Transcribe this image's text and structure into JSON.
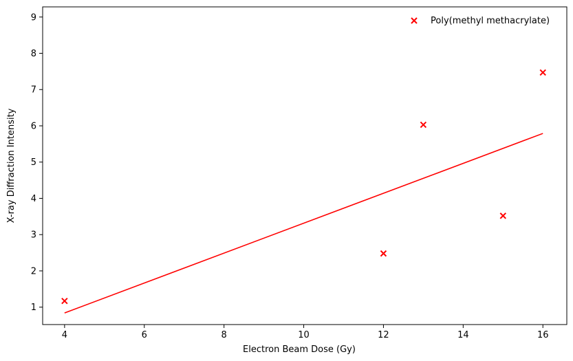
{
  "chart_data": {
    "type": "scatter",
    "title": "",
    "xlabel": "Electron Beam Dose (Gy)",
    "ylabel": "X-ray Diffraction Intensity",
    "xlim": [
      3.45,
      16.6
    ],
    "ylim": [
      0.52,
      9.28
    ],
    "xticks": [
      4,
      6,
      8,
      10,
      12,
      14,
      16
    ],
    "yticks": [
      1,
      2,
      3,
      4,
      5,
      6,
      7,
      8,
      9
    ],
    "grid": false,
    "legend_position": "upper right",
    "series": [
      {
        "name": "Poly(methyl methacrylate)",
        "kind": "scatter",
        "marker": "x",
        "color": "#ff0000",
        "x": [
          4,
          12,
          13,
          15,
          16
        ],
        "y": [
          1.17,
          2.48,
          6.03,
          3.52,
          7.47
        ]
      },
      {
        "kind": "line",
        "color": "#ff0000",
        "x": [
          4,
          16
        ],
        "y": [
          0.84,
          5.79
        ]
      }
    ]
  }
}
